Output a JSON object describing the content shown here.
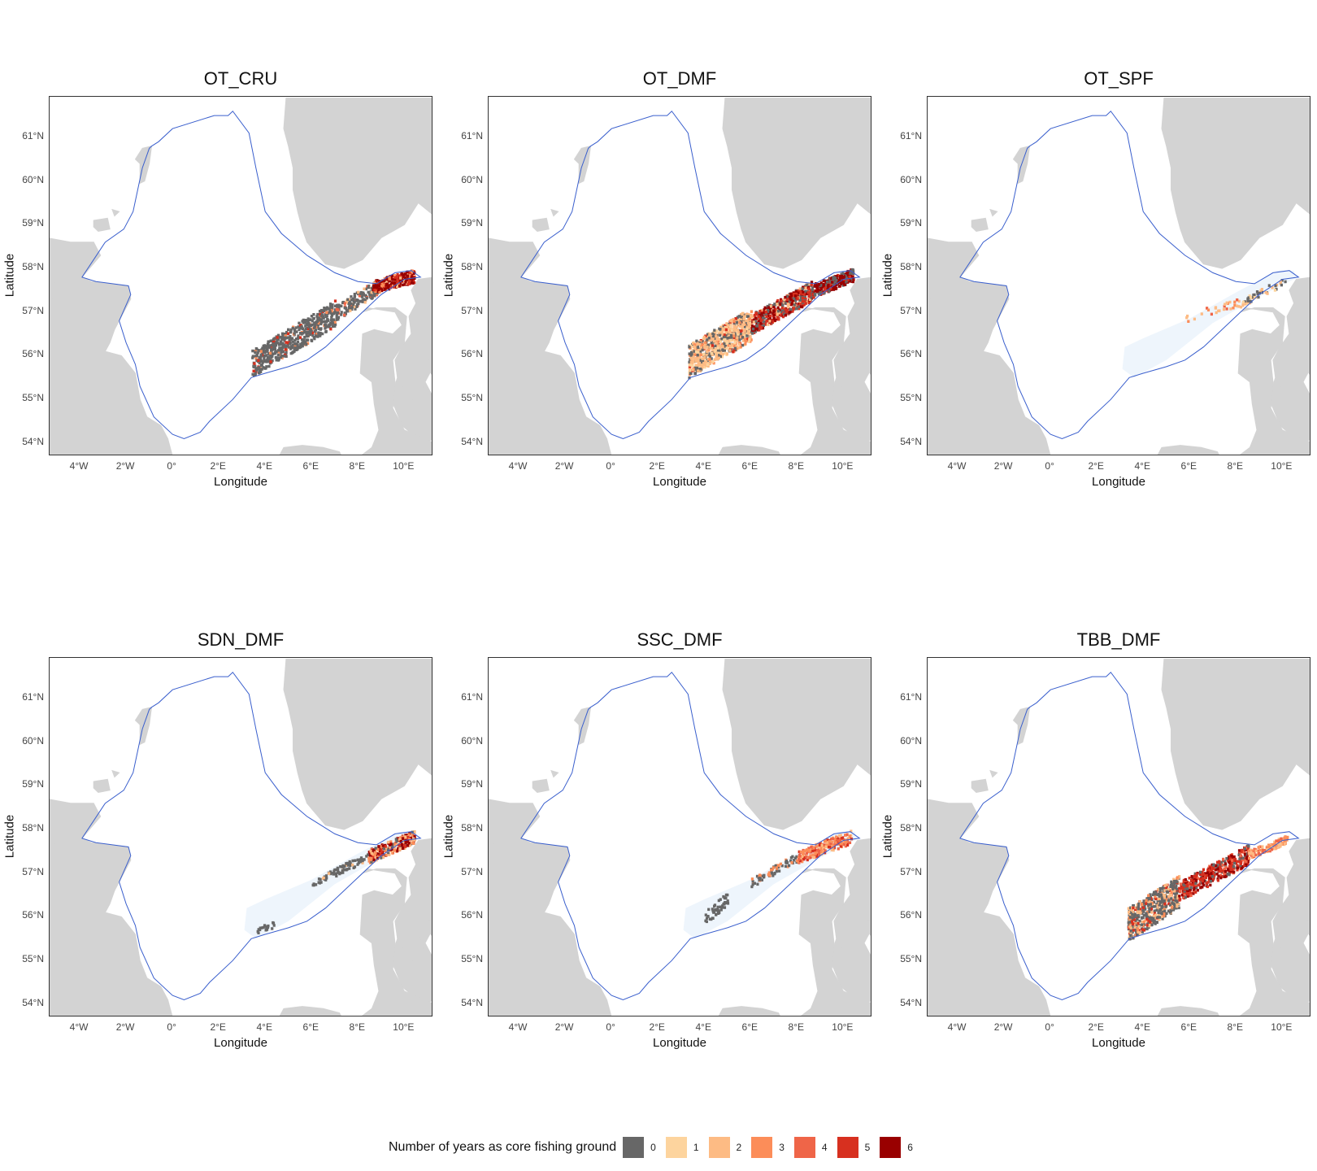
{
  "legend": {
    "title": "Number of years as core fishing ground",
    "items": [
      {
        "label": "0",
        "color": "#676767"
      },
      {
        "label": "1",
        "color": "#fdd49e"
      },
      {
        "label": "2",
        "color": "#fdbb84"
      },
      {
        "label": "3",
        "color": "#fc8d59"
      },
      {
        "label": "4",
        "color": "#ef6548"
      },
      {
        "label": "5",
        "color": "#d7301f"
      },
      {
        "label": "6",
        "color": "#990000"
      }
    ]
  },
  "axes": {
    "xlabel": "Longitude",
    "ylabel": "Latitude",
    "xticks": [
      "4°W",
      "2°W",
      "0°",
      "2°E",
      "4°E",
      "6°E",
      "8°E",
      "10°E"
    ],
    "yticks": [
      "61°N",
      "60°N",
      "59°N",
      "58°N",
      "57°N",
      "56°N",
      "55°N",
      "54°N"
    ]
  },
  "colors": {
    "land": "#d3d3d3",
    "boundary": "#3a5fcd",
    "area_fill": "#eef5fc"
  },
  "panels": [
    {
      "title": "OT_CRU"
    },
    {
      "title": "OT_DMF"
    },
    {
      "title": "OT_SPF"
    },
    {
      "title": "SDN_DMF"
    },
    {
      "title": "SSC_DMF"
    },
    {
      "title": "TBB_DMF"
    }
  ]
}
